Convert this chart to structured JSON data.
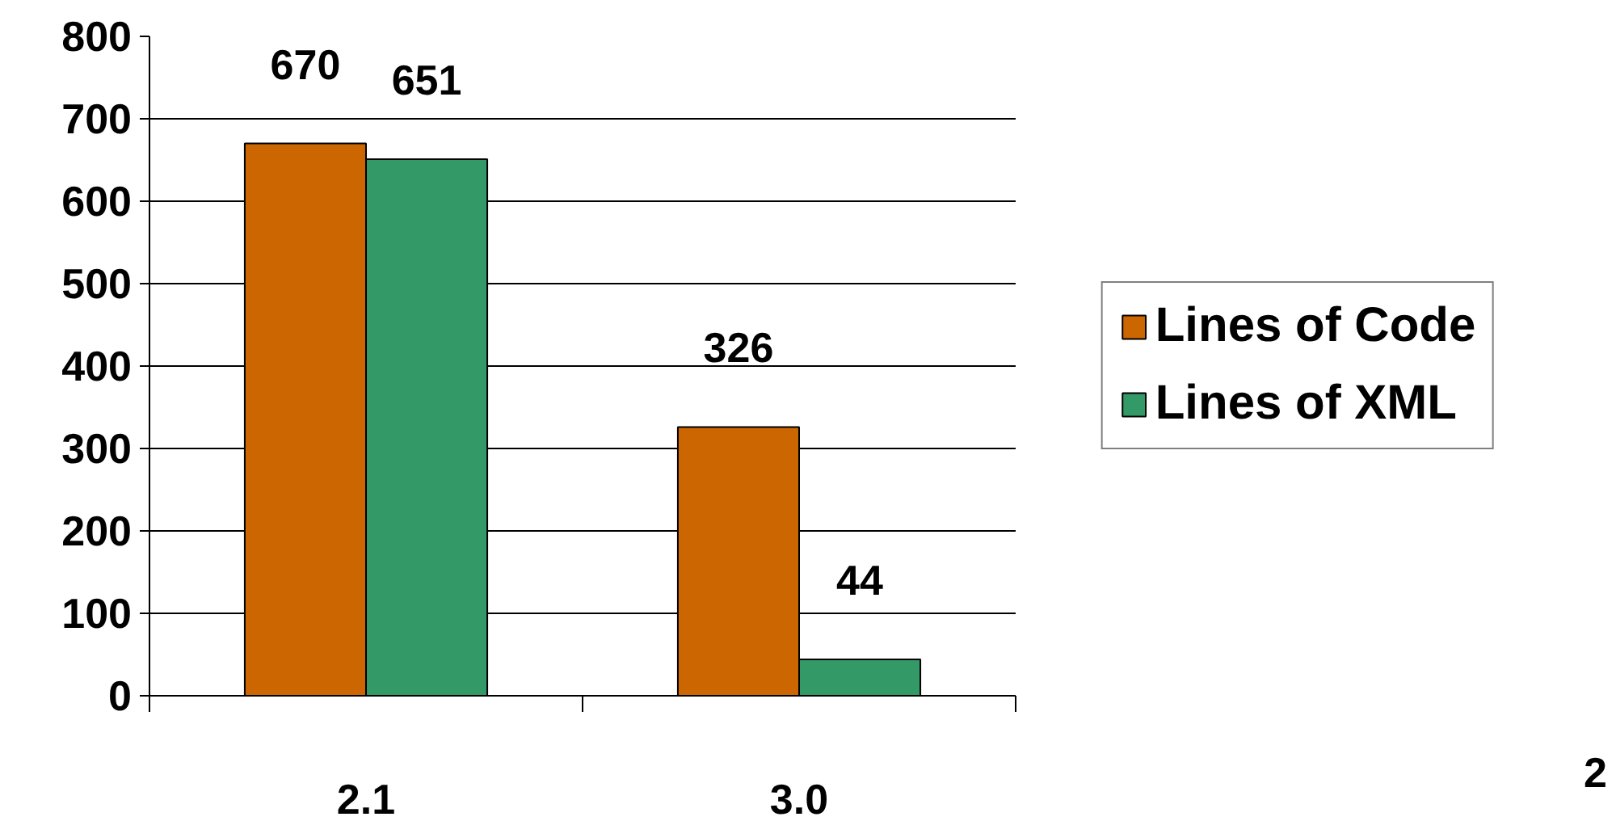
{
  "chart_data": {
    "type": "bar",
    "categories": [
      "2.1",
      "3.0"
    ],
    "series": [
      {
        "name": "Lines of Code",
        "color": "#cc6600",
        "values": [
          670,
          326
        ]
      },
      {
        "name": "Lines of XML",
        "color": "#339966",
        "values": [
          651,
          44
        ]
      }
    ],
    "ylim": [
      0,
      800
    ],
    "yticks": [
      0,
      100,
      200,
      300,
      400,
      500,
      600,
      700,
      800
    ],
    "grid": "y",
    "legend": "right",
    "data_labels": true,
    "annotations": [
      "2"
    ]
  }
}
